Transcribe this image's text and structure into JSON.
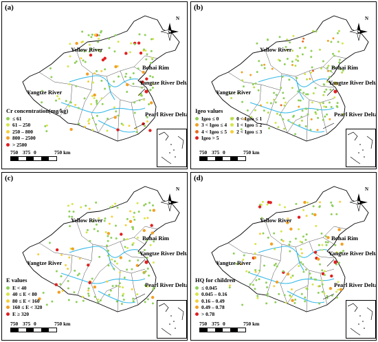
{
  "panels": [
    {
      "id": "a",
      "label": "(a)",
      "legend_title": "Cr concentration(mg/kg)",
      "legend_items": [
        {
          "text": "≤ 61",
          "color": "#8fcf5a"
        },
        {
          "text": "61 – 250",
          "color": "#d6e64a"
        },
        {
          "text": "250 – 800",
          "color": "#f5d03a"
        },
        {
          "text": "800 – 2500",
          "color": "#f2a024"
        },
        {
          "text": "> 2500",
          "color": "#e02020"
        }
      ]
    },
    {
      "id": "b",
      "label": "(b)",
      "legend_title": "Igeo values",
      "legend_items": [
        {
          "text": "Igeo ≤ 0",
          "color": "#8fcf5a"
        },
        {
          "text": "0 < Igeo ≤ 1",
          "color": "#b8dc4e"
        },
        {
          "text": "3 < Igeo ≤ 4",
          "color": "#f2a024"
        },
        {
          "text": "1 < Igeo ≤ 2",
          "color": "#d6e64a"
        },
        {
          "text": "4 < Igeo ≤ 5",
          "color": "#ec6a22"
        },
        {
          "text": "2 < Igeo ≤ 3",
          "color": "#f5d03a"
        },
        {
          "text": "Igeo > 5",
          "color": "#e02020"
        }
      ]
    },
    {
      "id": "c",
      "label": "(c)",
      "legend_title": "E values",
      "legend_items": [
        {
          "text": "E < 40",
          "color": "#8fcf5a"
        },
        {
          "text": "40 ≤ E < 80",
          "color": "#d6e64a"
        },
        {
          "text": "80 ≤ E < 160",
          "color": "#f5d03a"
        },
        {
          "text": "160 ≤ E < 320",
          "color": "#f2a024"
        },
        {
          "text": "E ≥ 320",
          "color": "#e02020"
        }
      ]
    },
    {
      "id": "d",
      "label": "(d)",
      "legend_title": "HQ for children",
      "legend_items": [
        {
          "text": "≤ 0.045",
          "color": "#8fcf5a"
        },
        {
          "text": "0.045 – 0.16",
          "color": "#d6e64a"
        },
        {
          "text": "0.16 – 0.49",
          "color": "#f5d03a"
        },
        {
          "text": "0.49 – 0.78",
          "color": "#f2a024"
        },
        {
          "text": "> 0.78",
          "color": "#e02020"
        }
      ]
    }
  ],
  "region_labels": {
    "yellow_river": "Yellow River",
    "bohai_rim": "Bohai Rim",
    "yangtze_river": "Yangtze River",
    "yangtze_river_delta": "Yangtze River Delta",
    "pearl_river_delta": "Pearl River Delta"
  },
  "scale": {
    "ticks": [
      "750",
      "375",
      "0",
      "750 km"
    ]
  },
  "north_label": "N",
  "colors": {
    "river": "#33b8e8",
    "border": "#000000"
  }
}
